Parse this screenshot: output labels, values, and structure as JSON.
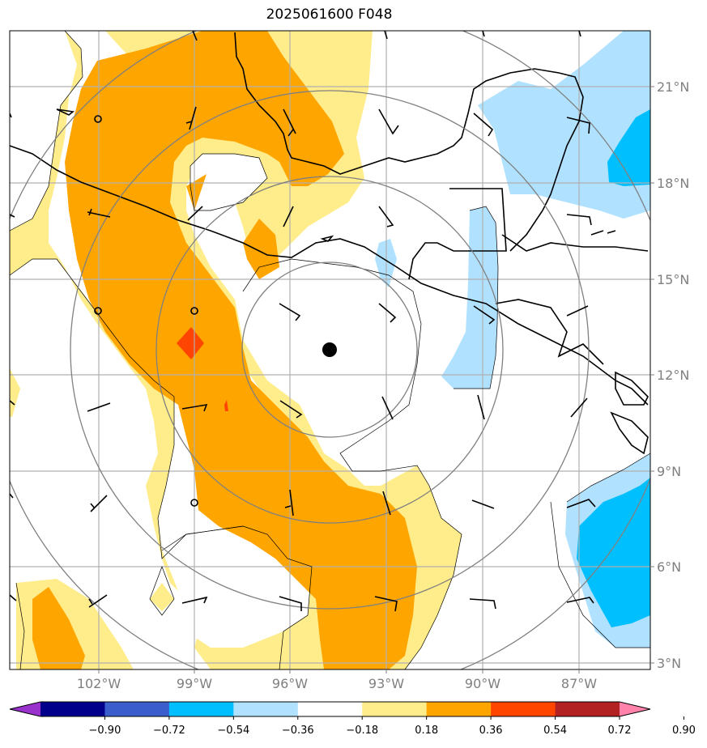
{
  "title": "2025061600 F048",
  "lat_labels": [
    "21°N",
    "18°N",
    "15°N",
    "12°N",
    "9°N",
    "6°N",
    "3°N"
  ],
  "lon_labels": [
    "102°W",
    "99°W",
    "96°W",
    "93°W",
    "90°W",
    "87°W"
  ],
  "colorbar": {
    "ticks": [
      "−0.90",
      "−0.72",
      "−0.54",
      "−0.36",
      "−0.18",
      "0.18",
      "0.36",
      "0.54",
      "0.72",
      "0.90"
    ],
    "colors": [
      "#9932cc",
      "#00008b",
      "#3a5fcd",
      "#00bfff",
      "#b0e2ff",
      "#ffffff",
      "#ffec8b",
      "#ffa500",
      "#ff4500",
      "#b22222",
      "#ff82ab"
    ]
  },
  "storm_center_marker": "filled-black-circle",
  "range_rings": 4
}
